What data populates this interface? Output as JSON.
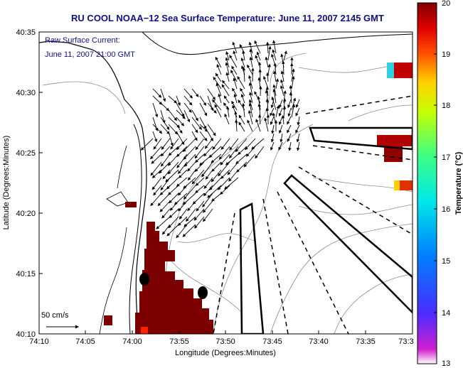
{
  "title": "RU COOL   NOAA−12  Sea Surface Temperature:  June 11, 2007 2145 GMT",
  "annotation": {
    "line1": "Raw Surface Current:",
    "line2": "June 11, 2007 21:00 GMT"
  },
  "scale_label": "50 cm/s",
  "axes": {
    "xlabel": "Longitude (Degrees:Minutes)",
    "ylabel": "Latitude (Degrees:Minutes)",
    "x_ticks": [
      "74:10",
      "74:05",
      "74:00",
      "73:55",
      "73:50",
      "73:45",
      "73:40",
      "73:35",
      "73:3"
    ],
    "y_ticks": [
      "40:35",
      "40:30",
      "40:25",
      "40:20",
      "40:15",
      "40:10"
    ]
  },
  "colorbar": {
    "label": "Temperature (°C)",
    "min": 13,
    "max": 20,
    "ticks": [
      "20",
      "19",
      "18",
      "17",
      "16",
      "15",
      "14",
      "13"
    ]
  },
  "colors": {
    "title": "#10108a",
    "sst_warm": "#7d0000",
    "land_outline": "#000000",
    "isobath": "#8c8c8c"
  }
}
